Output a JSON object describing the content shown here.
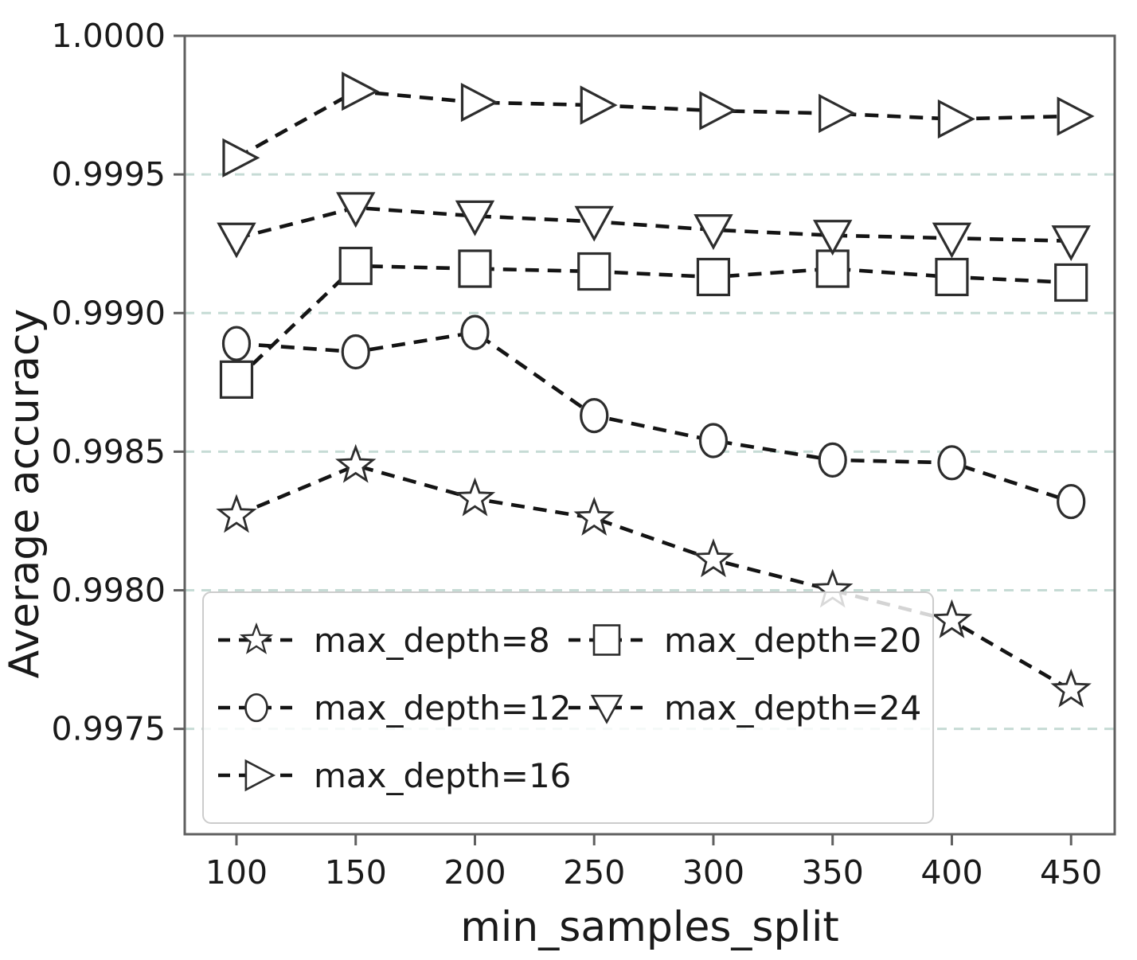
{
  "chart_data": {
    "type": "line",
    "title": "",
    "xlabel": "min_samples_split",
    "ylabel": "Average accuracy",
    "x": [
      100,
      150,
      200,
      250,
      300,
      350,
      400,
      450
    ],
    "x_tick_labels": [
      "100",
      "150",
      "200",
      "250",
      "300",
      "350",
      "400",
      "450"
    ],
    "y_ticks": [
      1.0,
      0.9995,
      0.999,
      0.9985,
      0.998,
      0.9975
    ],
    "y_tick_labels": [
      "1.0000",
      "0.9995",
      "0.9990",
      "0.9985",
      "0.9980",
      "0.9975"
    ],
    "xlim": [
      78.3,
      468.3
    ],
    "ylim": [
      0.99712,
      1.0
    ],
    "grid": {
      "axis": "y",
      "style": "dashed",
      "color": "#c6dbd5"
    },
    "line_style": {
      "dash": "dashed",
      "color": "#141414"
    },
    "marker_style": {
      "fill": "#ffffff",
      "edge": "#2d2d2d"
    },
    "axis_color": "#5f5f5f",
    "legend": {
      "position": "lower-left",
      "columns": 2,
      "border_color": "#cccccc"
    },
    "series": [
      {
        "name": "max_depth=8",
        "marker": "star",
        "values": [
          0.99827,
          0.99845,
          0.99833,
          0.99826,
          0.99811,
          0.998,
          0.99789,
          0.99764
        ]
      },
      {
        "name": "max_depth=12",
        "marker": "circle",
        "values": [
          0.99889,
          0.99886,
          0.99893,
          0.99863,
          0.99854,
          0.99847,
          0.99846,
          0.99832
        ]
      },
      {
        "name": "max_depth=16",
        "marker": "triangle-right",
        "values": [
          0.99956,
          0.9998,
          0.99976,
          0.99975,
          0.99973,
          0.99972,
          0.9997,
          0.99971
        ]
      },
      {
        "name": "max_depth=20",
        "marker": "square",
        "values": [
          0.99876,
          0.99917,
          0.99916,
          0.99915,
          0.99913,
          0.99916,
          0.99913,
          0.99911
        ]
      },
      {
        "name": "max_depth=24",
        "marker": "triangle-down",
        "values": [
          0.99927,
          0.99938,
          0.99935,
          0.99933,
          0.9993,
          0.99928,
          0.99927,
          0.99926
        ]
      }
    ]
  }
}
